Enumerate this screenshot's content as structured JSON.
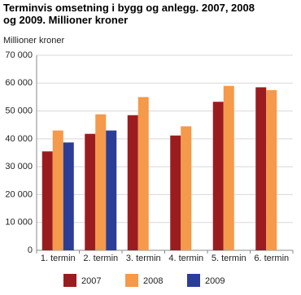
{
  "chart_data": {
    "type": "bar",
    "title": "Terminvis omsetning i bygg og anlegg. 2007, 2008 og 2009. Millioner kroner",
    "y_label": "Millioner kroner",
    "categories": [
      "1. termin",
      "2. termin",
      "3. termin",
      "4. termin",
      "5. termin",
      "6. termin"
    ],
    "series": [
      {
        "name": "2007",
        "color": "#9b1c1f",
        "values": [
          35500,
          41800,
          48500,
          41200,
          53300,
          58500
        ]
      },
      {
        "name": "2008",
        "color": "#f5994a",
        "values": [
          43000,
          48800,
          55000,
          44500,
          59000,
          57500
        ]
      },
      {
        "name": "2009",
        "color": "#2b3d96",
        "values": [
          38700,
          43000,
          null,
          null,
          null,
          null
        ]
      }
    ],
    "ylim": [
      0,
      70000
    ],
    "yticks": [
      0,
      {
        "value": 10000,
        "label": "10 000"
      },
      {
        "value": 20000,
        "label": "20 000"
      },
      {
        "value": 30000,
        "label": "30 000"
      },
      {
        "value": 40000,
        "label": "40 000"
      },
      {
        "value": 50000,
        "label": "50 000"
      },
      {
        "value": 60000,
        "label": "60 000"
      },
      {
        "value": 70000,
        "label": "70 000"
      }
    ],
    "grid": true
  }
}
